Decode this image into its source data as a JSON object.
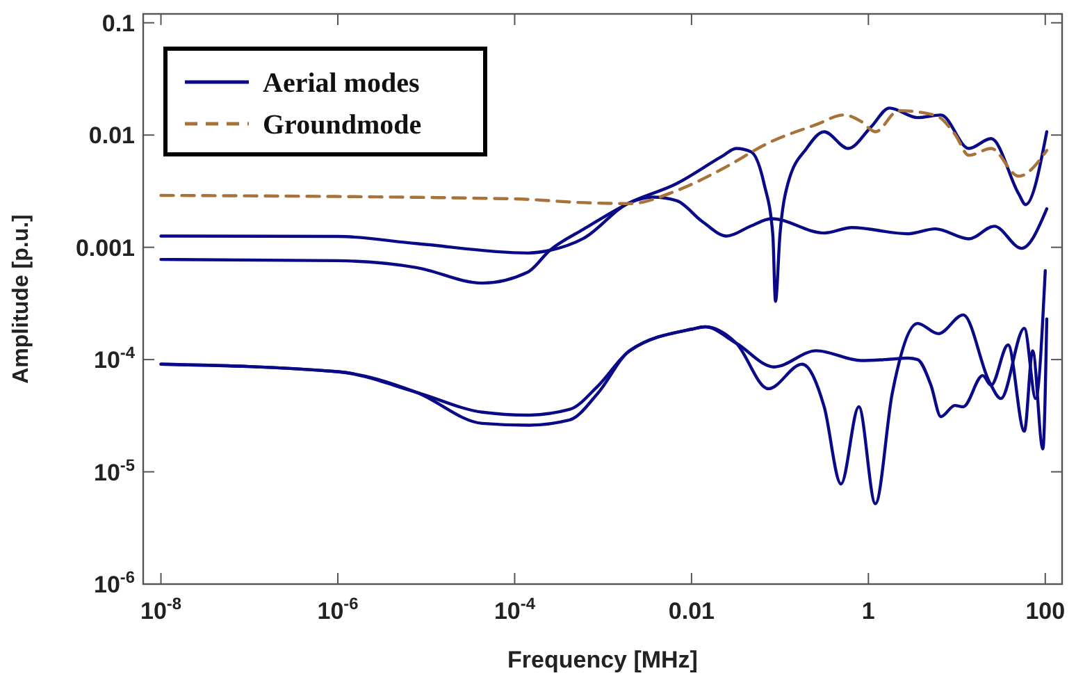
{
  "chart_data": {
    "type": "line",
    "xlabel": "Frequency [MHz]",
    "ylabel": "Amplitude [p.u.]",
    "log": "xy",
    "legend": "top left",
    "grid": false,
    "line_style": "solid",
    "xlim": [
      6.3e-09,
      155
    ],
    "ylim": [
      1e-06,
      0.12
    ],
    "xticks": [
      {
        "value": 1e-08,
        "label": "10$^{-8}$"
      },
      {
        "value": 1e-06,
        "label": "10$^{-6}$"
      },
      {
        "value": 0.0001,
        "label": "10$^{-4}$"
      },
      0.01,
      1,
      100
    ],
    "yticks": [
      {
        "value": 1e-06,
        "label": "10$^{-6}$"
      },
      {
        "value": 1e-05,
        "label": "10$^{-5}$"
      },
      {
        "value": 0.0001,
        "label": "10$^{-4}$"
      },
      0.001,
      0.01,
      0.1
    ],
    "series": [
      {
        "name": "Aerial modes",
        "color": "#0a0a88",
        "x": [
          1e-08,
          1e-06,
          7.8e-06,
          4.3e-05,
          0.00014,
          0.00025,
          0.0006,
          0.002,
          0.0068,
          0.0224,
          0.032,
          0.047,
          0.066,
          0.083,
          0.089,
          0.1,
          0.123,
          0.2,
          0.316,
          0.59,
          1.07,
          1.73,
          3.6,
          6.6,
          13.7,
          24.4,
          50,
          60,
          104
        ],
        "values": [
          0.00078,
          0.00076,
          0.00066,
          0.00048,
          0.0006,
          0.00094,
          0.00145,
          0.0025,
          0.0037,
          0.0065,
          0.0076,
          0.0071,
          0.0037,
          0.0013,
          0.00033,
          0.0013,
          0.0037,
          0.0076,
          0.0107,
          0.0076,
          0.0118,
          0.0174,
          0.0143,
          0.0151,
          0.0076,
          0.0093,
          0.003,
          0.0024,
          0.0107
        ]
      },
      {
        "color": "#0a0a88",
        "x": [
          1e-08,
          1e-06,
          7.8e-06,
          0.00014,
          0.00025,
          0.0006,
          0.002,
          0.0037,
          0.0068,
          0.0132,
          0.025,
          0.047,
          0.08,
          0.316,
          0.65,
          2.8,
          5.7,
          13.7,
          26.5,
          54,
          104
        ],
        "values": [
          0.00126,
          0.00125,
          0.00108,
          0.00089,
          0.00094,
          0.0012,
          0.0025,
          0.0028,
          0.0026,
          0.0017,
          0.00126,
          0.00155,
          0.0018,
          0.00134,
          0.0015,
          0.00132,
          0.00146,
          0.00119,
          0.00154,
          0.00098,
          0.0022
        ]
      },
      {
        "color": "#0a0a88",
        "x": [
          1e-08,
          1e-06,
          7.8e-06,
          4.3e-05,
          0.00014,
          0.00042,
          0.00087,
          0.002,
          0.0102,
          0.0142,
          0.032,
          0.086,
          0.257,
          0.83,
          1.55,
          2.8,
          3.6,
          5.1,
          6.6,
          9.5,
          11.8,
          19.6,
          24.4,
          38,
          58,
          72,
          94,
          104
        ],
        "values": [
          9.1e-05,
          7.8e-05,
          5.1e-05,
          3.4e-05,
          3.2e-05,
          3.6e-05,
          5.8e-05,
          0.00012,
          0.000187,
          0.000196,
          0.00014,
          8.6e-05,
          0.00012,
          9.8e-05,
          0.0001,
          0.000103,
          0.0001,
          5.9e-05,
          3.1e-05,
          3.9e-05,
          3.8e-05,
          7.2e-05,
          5.9e-05,
          0.000135,
          2.3e-05,
          0.00012,
          1.6e-05,
          0.00023
        ]
      },
      {
        "color": "#0a0a88",
        "x": [
          1e-08,
          1e-06,
          7.8e-06,
          4.3e-05,
          0.00014,
          0.00042,
          0.00087,
          0.002,
          0.0102,
          0.0142,
          0.032,
          0.074,
          0.178,
          0.316,
          0.49,
          0.78,
          1.2,
          1.86,
          3.6,
          6.2,
          11.8,
          23.4,
          31.5,
          58,
          78,
          100
        ],
        "values": [
          9.1e-05,
          7.8e-05,
          5.1e-05,
          2.7e-05,
          2.6e-05,
          2.9e-05,
          5e-05,
          0.00012,
          0.000187,
          0.000196,
          0.00014,
          5.5e-05,
          9.1e-05,
          3.8e-05,
          7.8e-06,
          3.8e-05,
          5.2e-06,
          5e-05,
          0.00021,
          0.00017,
          0.00025,
          6.3e-05,
          4.5e-05,
          0.00019,
          4.5e-05,
          0.00062
        ]
      },
      {
        "name": "Groundmode",
        "color": "#a8733a",
        "line_style": "dashed",
        "x": [
          1e-08,
          0.0001,
          0.0006,
          0.002,
          0.0068,
          0.0224,
          0.074,
          0.257,
          0.53,
          0.83,
          1.2,
          2.2,
          5.7,
          9.5,
          13.7,
          24.4,
          50,
          104
        ],
        "values": [
          0.0029,
          0.0027,
          0.0025,
          0.00245,
          0.0032,
          0.005,
          0.0085,
          0.0124,
          0.0151,
          0.0132,
          0.0107,
          0.0165,
          0.015,
          0.0102,
          0.0066,
          0.0076,
          0.0043,
          0.0073
        ]
      }
    ]
  }
}
